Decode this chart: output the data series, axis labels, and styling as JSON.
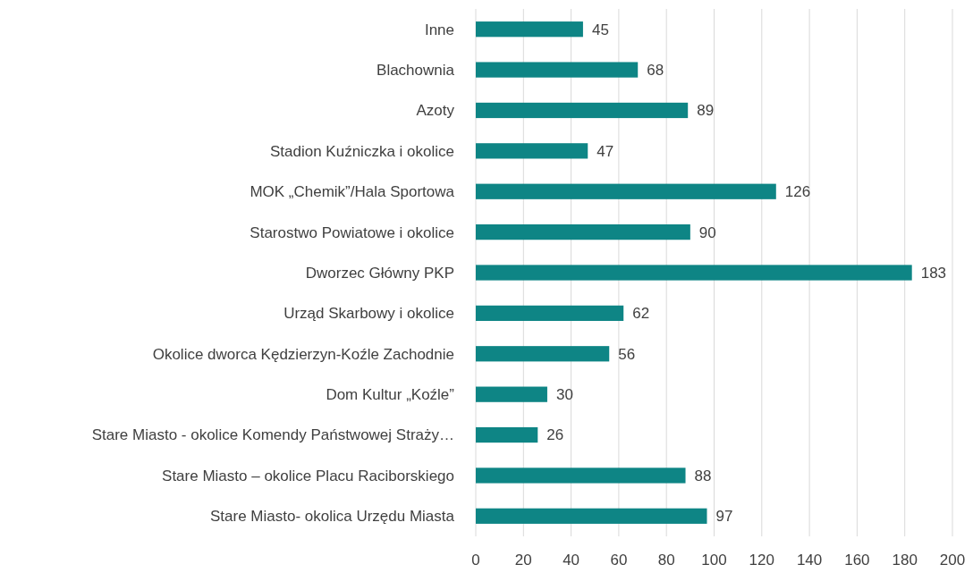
{
  "chart_data": {
    "type": "bar",
    "orientation": "horizontal",
    "categories": [
      "Inne",
      "Blachownia",
      "Azoty",
      "Stadion Kuźniczka i okolice",
      "MOK „Chemik”/Hala Sportowa",
      "Starostwo Powiatowe i okolice",
      "Dworzec Główny PKP",
      "Urząd Skarbowy i okolice",
      "Okolice dworca Kędzierzyn-Koźle Zachodnie",
      "Dom Kultur „Koźle”",
      "Stare Miasto - okolice Komendy Państwowej Straży…",
      "Stare Miasto – okolice Placu Raciborskiego",
      "Stare Miasto- okolica Urzędu Miasta"
    ],
    "values": [
      45,
      68,
      89,
      47,
      126,
      90,
      183,
      62,
      56,
      30,
      26,
      88,
      97
    ],
    "color": "#0e8585",
    "xlim": [
      0,
      200
    ],
    "xticks": [
      0,
      20,
      40,
      60,
      80,
      100,
      120,
      140,
      160,
      180,
      200
    ],
    "grid": "x",
    "data_labels": true
  }
}
